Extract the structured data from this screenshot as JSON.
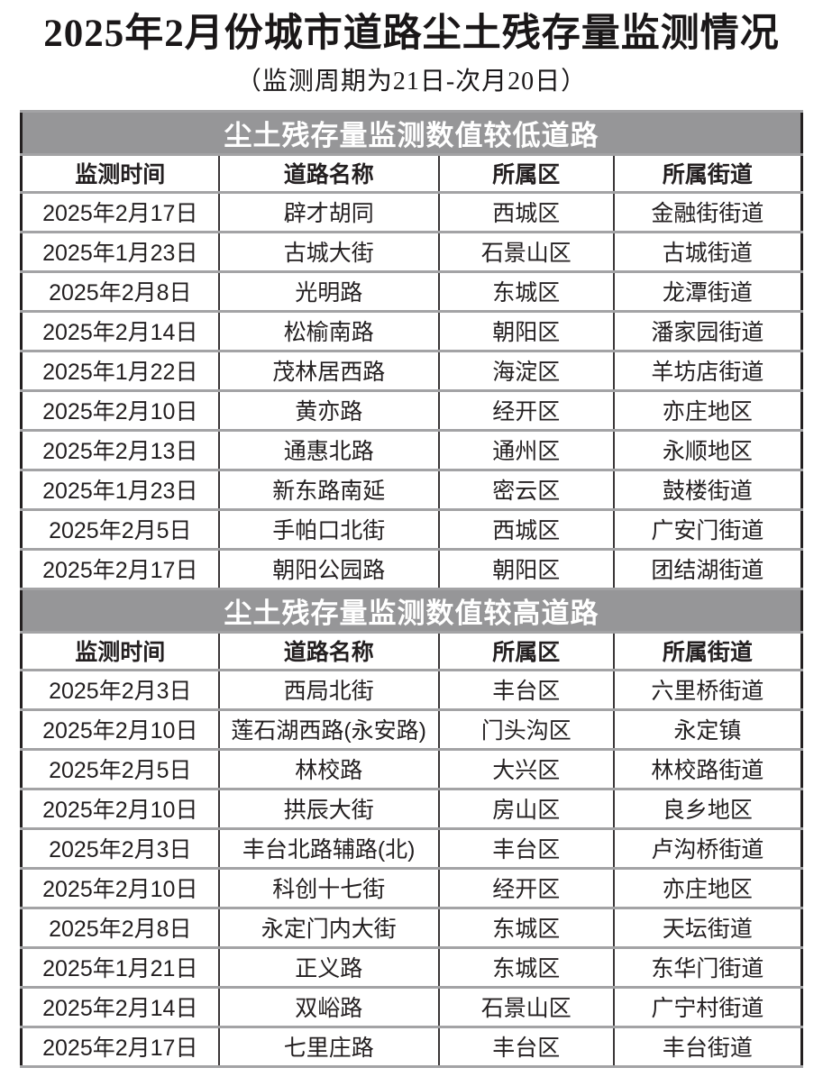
{
  "page": {
    "title": "2025年2月份城市道路尘土残存量监测情况",
    "subtitle": "（监测周期为21日-次月20日）"
  },
  "columns": [
    "监测时间",
    "道路名称",
    "所属区",
    "所属街道"
  ],
  "sections": [
    {
      "header": "尘土残存量监测数值较低道路",
      "rows": [
        [
          "2025年2月17日",
          "辟才胡同",
          "西城区",
          "金融街街道"
        ],
        [
          "2025年1月23日",
          "古城大街",
          "石景山区",
          "古城街道"
        ],
        [
          "2025年2月8日",
          "光明路",
          "东城区",
          "龙潭街道"
        ],
        [
          "2025年2月14日",
          "松榆南路",
          "朝阳区",
          "潘家园街道"
        ],
        [
          "2025年1月22日",
          "茂林居西路",
          "海淀区",
          "羊坊店街道"
        ],
        [
          "2025年2月10日",
          "黄亦路",
          "经开区",
          "亦庄地区"
        ],
        [
          "2025年2月13日",
          "通惠北路",
          "通州区",
          "永顺地区"
        ],
        [
          "2025年1月23日",
          "新东路南延",
          "密云区",
          "鼓楼街道"
        ],
        [
          "2025年2月5日",
          "手帕口北街",
          "西城区",
          "广安门街道"
        ],
        [
          "2025年2月17日",
          "朝阳公园路",
          "朝阳区",
          "团结湖街道"
        ]
      ]
    },
    {
      "header": "尘土残存量监测数值较高道路",
      "rows": [
        [
          "2025年2月3日",
          "西局北街",
          "丰台区",
          "六里桥街道"
        ],
        [
          "2025年2月10日",
          "莲石湖西路(永安路)",
          "门头沟区",
          "永定镇"
        ],
        [
          "2025年2月5日",
          "林校路",
          "大兴区",
          "林校路街道"
        ],
        [
          "2025年2月10日",
          "拱辰大街",
          "房山区",
          "良乡地区"
        ],
        [
          "2025年2月3日",
          "丰台北路辅路(北)",
          "丰台区",
          "卢沟桥街道"
        ],
        [
          "2025年2月10日",
          "科创十七街",
          "经开区",
          "亦庄地区"
        ],
        [
          "2025年2月8日",
          "永定门内大街",
          "东城区",
          "天坛街道"
        ],
        [
          "2025年1月21日",
          "正义路",
          "东城区",
          "东华门街道"
        ],
        [
          "2025年2月14日",
          "双峪路",
          "石景山区",
          "广宁村街道"
        ],
        [
          "2025年2月17日",
          "七里庄路",
          "丰台区",
          "丰台街道"
        ]
      ]
    }
  ],
  "colors": {
    "section_header_bg": "#969698",
    "section_header_text": "#ffffff",
    "body_text": "#231f20",
    "horizontal_rule": "#a3a3a5",
    "vertical_rule": "#3a3637",
    "outer_border": "#231f20"
  }
}
